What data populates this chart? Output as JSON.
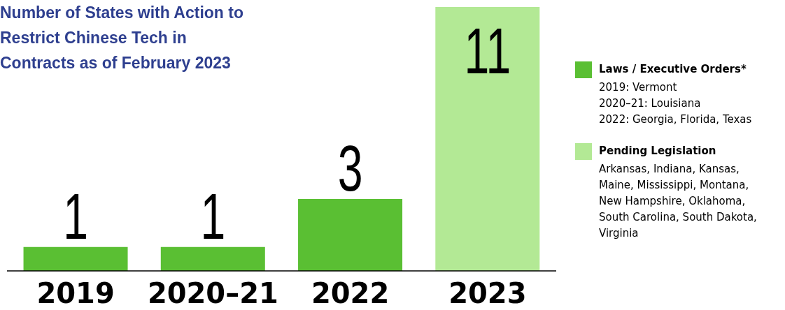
{
  "chart_data": {
    "type": "bar",
    "title": "Number of States with Action to Restrict Chinese Tech in Contracts as of February 2023",
    "categories": [
      "2019",
      "2020–21",
      "2022",
      "2023"
    ],
    "series": [
      {
        "name": "Laws / Executive Orders*",
        "color": "#5abf33",
        "values": [
          1,
          1,
          3,
          null
        ]
      },
      {
        "name": "Pending Legislation",
        "color": "#b3e995",
        "values": [
          null,
          null,
          null,
          11
        ]
      }
    ],
    "stacked": true,
    "data_labels": true,
    "legend": "right",
    "grid": false,
    "annotations": [
      "2019: Vermont",
      "2020–21: Louisiana",
      "2022: Georgia, Florida, Texas",
      "Arkansas, Indiana, Kansas, Maine, Mississippi, Montana, New Hampshire, Oklahoma, South Carolina, South Dakota, Virginia"
    ]
  }
}
